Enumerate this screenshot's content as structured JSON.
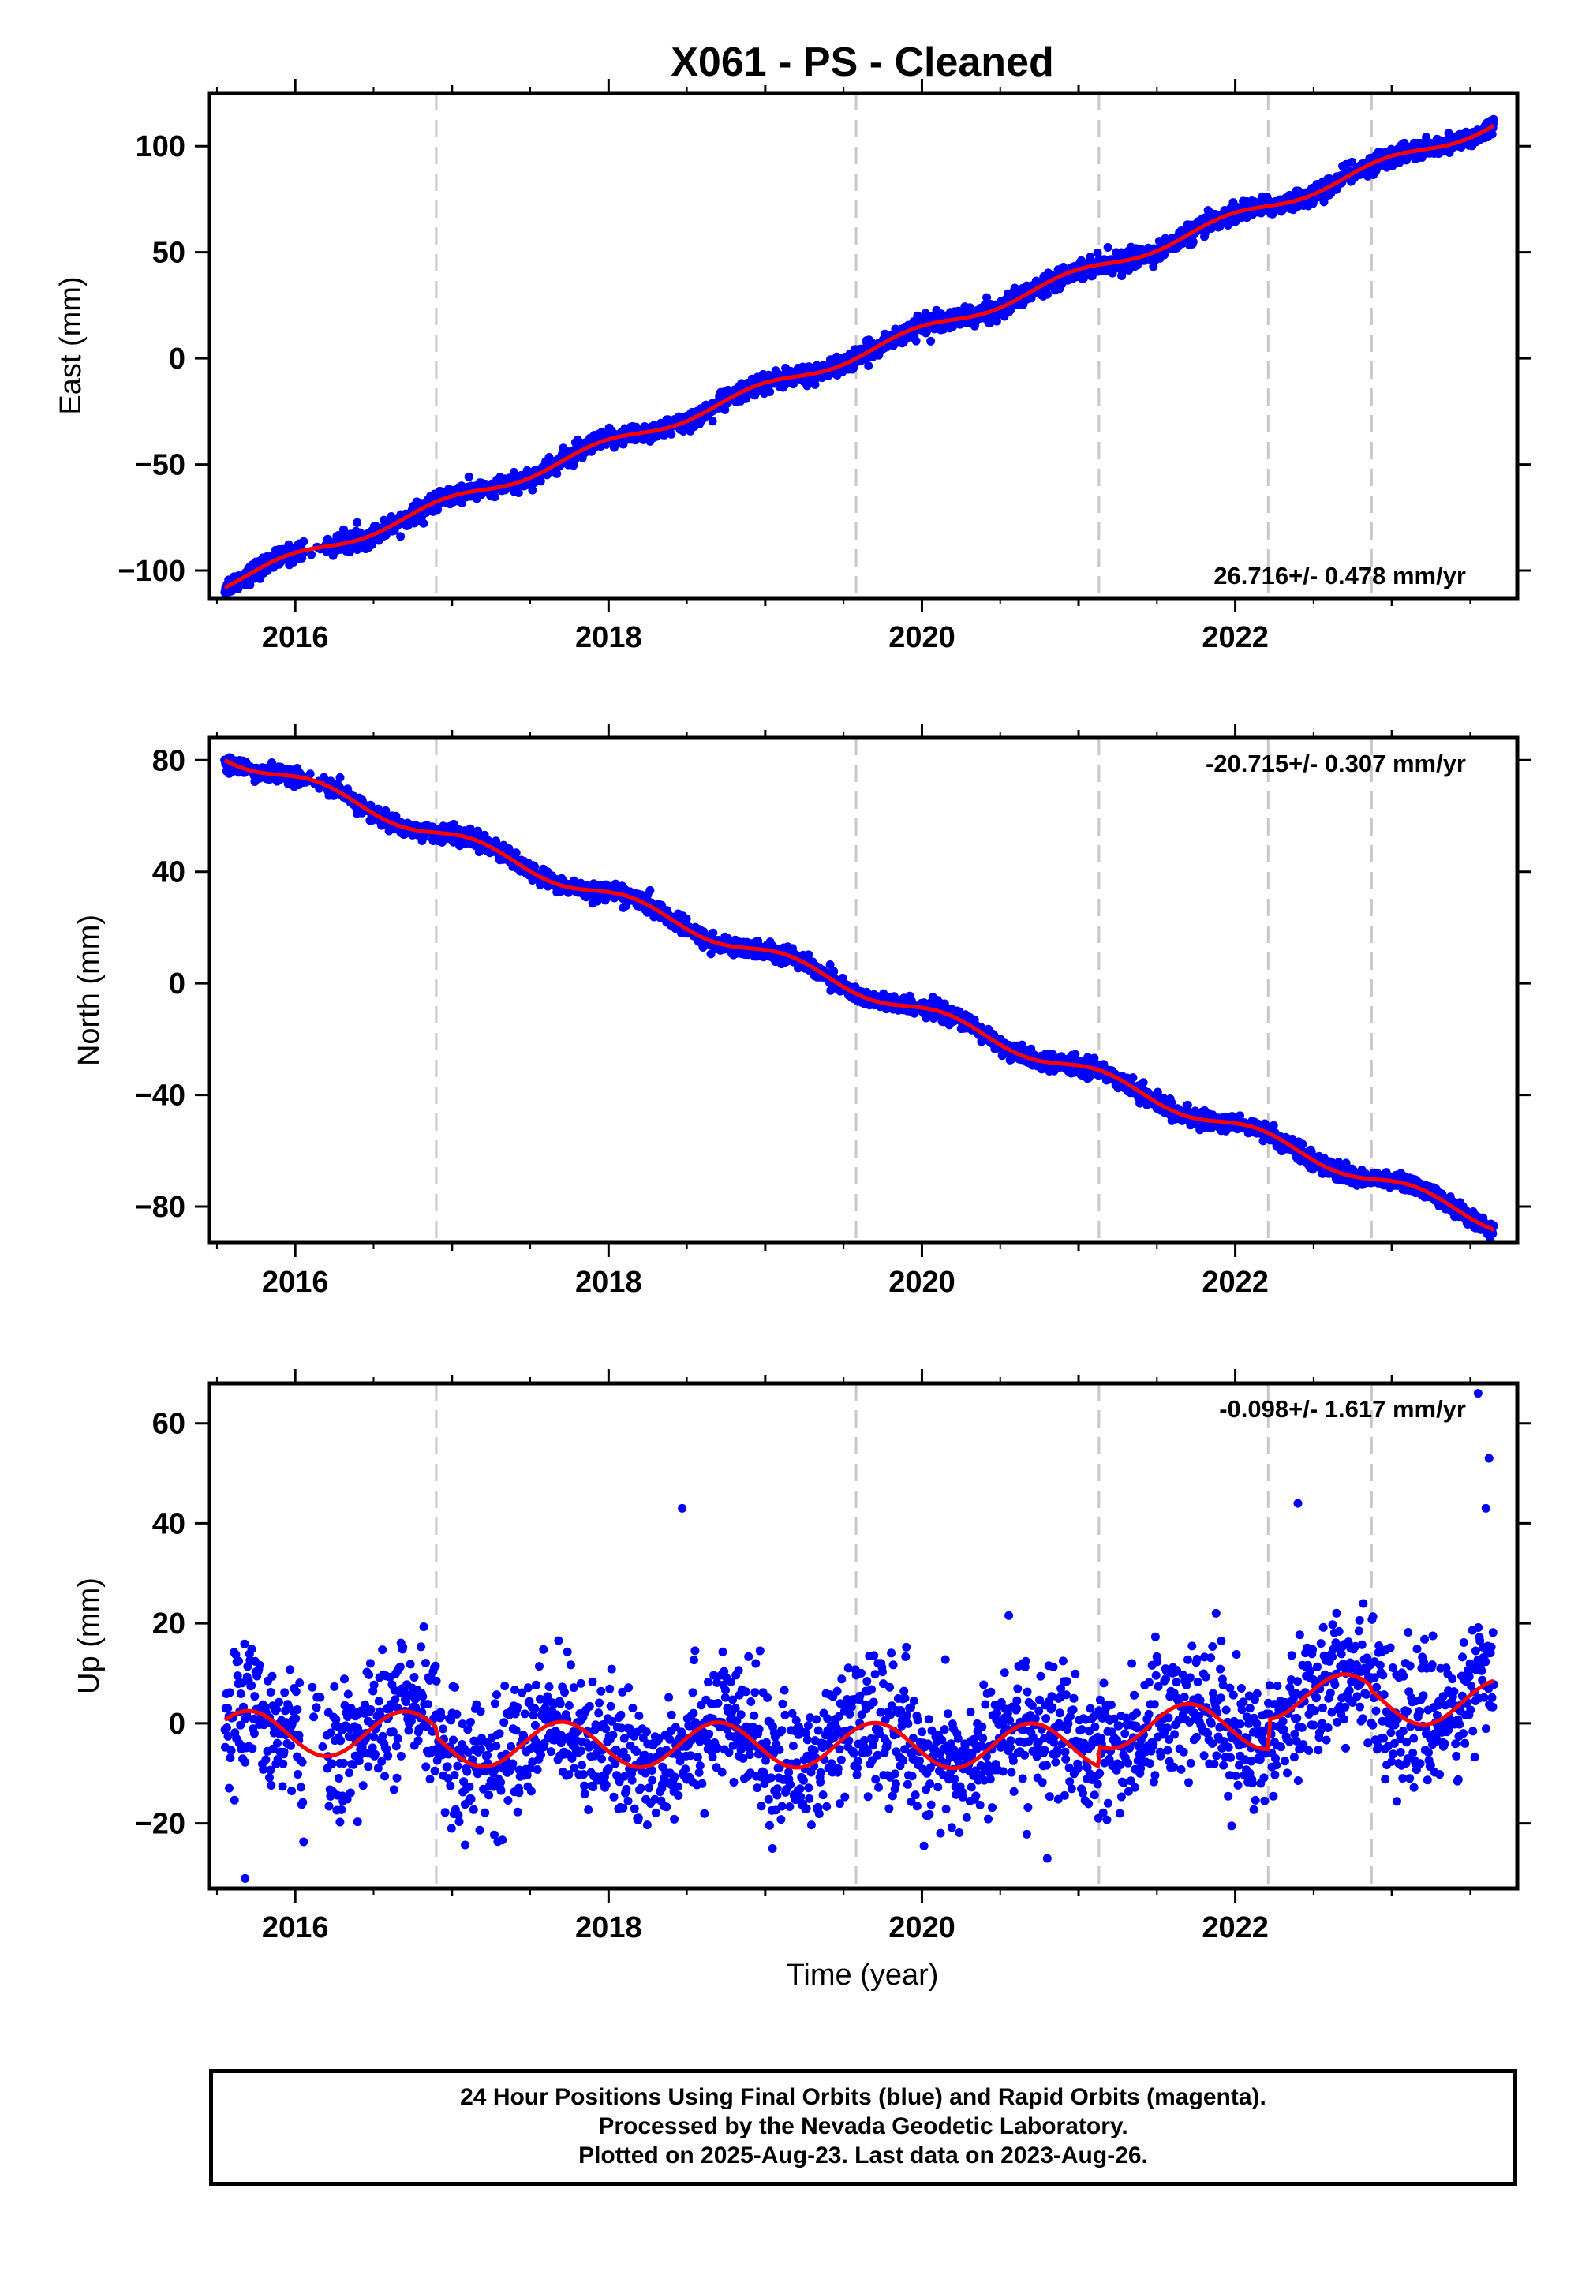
{
  "title": "X061  - PS - Cleaned",
  "xlabel": "Time (year)",
  "caption": [
    "24 Hour Positions Using Final Orbits (blue) and Rapid Orbits (magenta).",
    "Processed by the Nevada Geodetic Laboratory.",
    "Plotted on 2025-Aug-23. Last data on 2023-Aug-26."
  ],
  "colors": {
    "points": "#0000ff",
    "model": "#ff0000",
    "dashed_lines": "#c8c8c8",
    "axes": "#000000"
  },
  "chart_data": [
    {
      "type": "scatter",
      "component": "East",
      "ylabel": "East (mm)",
      "rate_label": "26.716+/- 0.478 mm/yr",
      "rate_position": "bottom-right",
      "xlim": [
        2015.45,
        2023.8
      ],
      "ylim": [
        -113,
        125
      ],
      "xticks": [
        2016,
        2018,
        2020,
        2022
      ],
      "xtick_labels": [
        "2016",
        "2018",
        "2020",
        "2022"
      ],
      "yticks": [
        -100,
        -50,
        0,
        50,
        100
      ],
      "ytick_labels": [
        "−100",
        "−50",
        "0",
        "50",
        "100"
      ],
      "dashed_verticals": [
        2016.9,
        2019.58,
        2021.13,
        2022.21,
        2022.87
      ],
      "start": 2015.55,
      "end": 2023.65,
      "intercept_at_start": -106,
      "rate": 26.716,
      "seasonal": {
        "amplitude": 2.5,
        "phase": 0.3
      },
      "scatter": 2.2,
      "offsets": [
        [
          2016.9,
          0
        ],
        [
          2019.58,
          0
        ],
        [
          2021.13,
          0
        ],
        [
          2022.21,
          0
        ],
        [
          2022.87,
          0
        ]
      ],
      "grid": false
    },
    {
      "type": "scatter",
      "component": "North",
      "ylabel": "North (mm)",
      "rate_label": "-20.715+/- 0.307 mm/yr",
      "rate_position": "top-right",
      "xlim": [
        2015.45,
        2023.8
      ],
      "ylim": [
        -93,
        88
      ],
      "xticks": [
        2016,
        2018,
        2020,
        2022
      ],
      "xtick_labels": [
        "2016",
        "2018",
        "2020",
        "2022"
      ],
      "yticks": [
        -80,
        -40,
        0,
        40,
        80
      ],
      "ytick_labels": [
        "−80",
        "−40",
        "0",
        "40",
        "80"
      ],
      "dashed_verticals": [
        2016.9,
        2019.58,
        2021.13,
        2022.21,
        2022.87
      ],
      "start": 2015.55,
      "end": 2023.65,
      "intercept_at_start": 82,
      "rate": -20.715,
      "seasonal": {
        "amplitude": 2.5,
        "phase": 0.1
      },
      "scatter": 1.5,
      "offsets": [
        [
          2016.9,
          0
        ],
        [
          2019.58,
          0
        ],
        [
          2021.13,
          0
        ],
        [
          2022.21,
          0
        ],
        [
          2022.87,
          0
        ]
      ],
      "grid": false
    },
    {
      "type": "scatter",
      "component": "Up",
      "ylabel": "Up (mm)",
      "rate_label": "-0.098+/- 1.617 mm/yr",
      "rate_position": "top-right",
      "xlim": [
        2015.45,
        2023.8
      ],
      "ylim": [
        -33,
        68
      ],
      "xticks": [
        2016,
        2018,
        2020,
        2022
      ],
      "xtick_labels": [
        "2016",
        "2018",
        "2020",
        "2022"
      ],
      "yticks": [
        -20,
        0,
        20,
        40,
        60
      ],
      "ytick_labels": [
        "−20",
        "0",
        "20",
        "40",
        "60"
      ],
      "dashed_verticals": [
        2016.9,
        2019.58,
        2021.13,
        2022.21,
        2022.87
      ],
      "start": 2015.55,
      "end": 2023.65,
      "intercept_at_start": -2,
      "rate": -0.098,
      "seasonal": {
        "amplitude": 4.5,
        "phase": 0.55
      },
      "scatter": 6.5,
      "offsets": [
        [
          2016.9,
          -2
        ],
        [
          2019.58,
          0
        ],
        [
          2021.13,
          4
        ],
        [
          2022.21,
          6
        ],
        [
          2022.87,
          -1
        ]
      ],
      "outliers": [
        [
          2015.68,
          -31
        ],
        [
          2018.47,
          43
        ],
        [
          2020.8,
          -27
        ],
        [
          2022.4,
          44
        ],
        [
          2023.55,
          66
        ],
        [
          2023.62,
          53
        ],
        [
          2023.6,
          43
        ]
      ],
      "grid": false
    }
  ]
}
